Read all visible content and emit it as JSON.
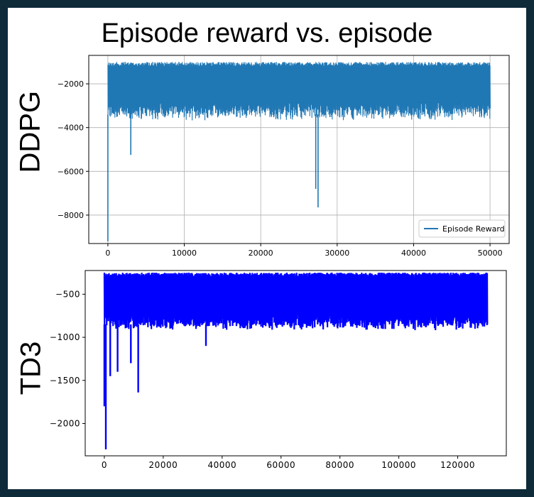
{
  "title": "Episode reward vs. episode",
  "chart_data": [
    {
      "type": "line",
      "name_label": "DDPG",
      "legend": "Episode Reward",
      "legend_position": "bottom-right",
      "grid": true,
      "color": "#1f77b4",
      "xlim": [
        -2500,
        52500
      ],
      "ylim": [
        -9300,
        -700
      ],
      "x_ticks": [
        0,
        10000,
        20000,
        30000,
        40000,
        50000
      ],
      "y_ticks": [
        -2000,
        -4000,
        -6000,
        -8000
      ],
      "band": {
        "x_start": 0,
        "x_end": 50000,
        "low_typical": -3400,
        "high_typical": -1000
      },
      "dips": [
        {
          "x": 0,
          "y": -9200
        },
        {
          "x": 3000,
          "y": -5250
        },
        {
          "x": 27200,
          "y": -6800
        },
        {
          "x": 27500,
          "y": -7650
        }
      ]
    },
    {
      "type": "line",
      "name_label": "TD3",
      "grid": false,
      "color": "#0000ff",
      "xlim": [
        -6500,
        136500
      ],
      "ylim": [
        -2375,
        -225
      ],
      "x_ticks": [
        0,
        20000,
        40000,
        60000,
        80000,
        100000,
        120000
      ],
      "y_ticks": [
        -500,
        -1000,
        -1500,
        -2000
      ],
      "band": {
        "x_start": 0,
        "x_end": 130000,
        "low_typical": -850,
        "high_typical": -250
      },
      "dips": [
        {
          "x": 500,
          "y": -2300
        },
        {
          "x": 0,
          "y": -1800
        },
        {
          "x": 2000,
          "y": -1450
        },
        {
          "x": 4500,
          "y": -1400
        },
        {
          "x": 9000,
          "y": -1300
        },
        {
          "x": 11500,
          "y": -1640
        },
        {
          "x": 34500,
          "y": -1100
        }
      ]
    }
  ]
}
